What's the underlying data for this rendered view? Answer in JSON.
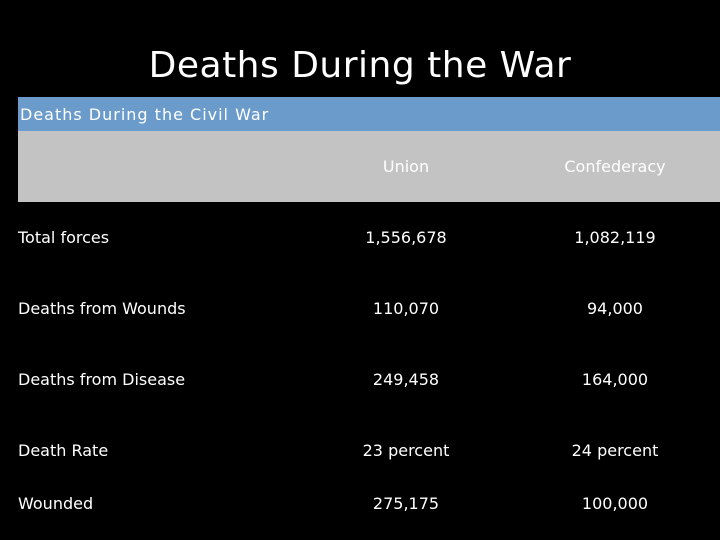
{
  "slide": {
    "title": "Deaths During the War"
  },
  "table": {
    "caption": "Deaths During the Civil War",
    "headers": [
      "",
      "Union",
      "Confederacy"
    ],
    "rows": [
      {
        "label": "Total forces",
        "union": "1,556,678",
        "confederacy": "1,082,119"
      },
      {
        "label": "Deaths from Wounds",
        "union": "110,070",
        "confederacy": "94,000"
      },
      {
        "label": "Deaths from Disease",
        "union": "249,458",
        "confederacy": "164,000"
      },
      {
        "label": "Death Rate",
        "union": "23 percent",
        "confederacy": "24 percent"
      },
      {
        "label": "Wounded",
        "union": "275,175",
        "confederacy": "100,000"
      }
    ]
  },
  "colors": {
    "background": "#000000",
    "caption_bar": "#6a9bcb",
    "header_row": "#c3c3c3",
    "text": "#ffffff"
  }
}
